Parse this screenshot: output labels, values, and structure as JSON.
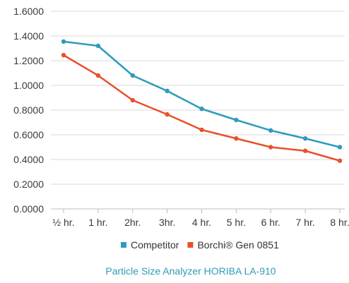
{
  "chart_data": {
    "type": "line",
    "categories": [
      "½ hr.",
      "1 hr.",
      "2hr.",
      "3hr.",
      "4 hr.",
      "5 hr.",
      "6 hr.",
      "7 hr.",
      "8 hr."
    ],
    "ylim": [
      0,
      1.6
    ],
    "yticks": [
      "0.0000",
      "0.2000",
      "0.4000",
      "0.6000",
      "0.8000",
      "1.0000",
      "1.2000",
      "1.4000",
      "1.6000"
    ],
    "grid": "horizontal",
    "legend_position": "bottom",
    "series": [
      {
        "name": "Competitor",
        "color": "#2e9bbb",
        "values": [
          1.355,
          1.32,
          1.08,
          0.955,
          0.81,
          0.72,
          0.635,
          0.57,
          0.5
        ]
      },
      {
        "name": "Borchi® Gen 0851",
        "color": "#e8512a",
        "values": [
          1.245,
          1.08,
          0.88,
          0.765,
          0.64,
          0.57,
          0.5,
          0.47,
          0.39
        ]
      }
    ],
    "caption": "Particle Size Analyzer HORIBA LA-910",
    "caption_color": "#2e9bbb"
  }
}
